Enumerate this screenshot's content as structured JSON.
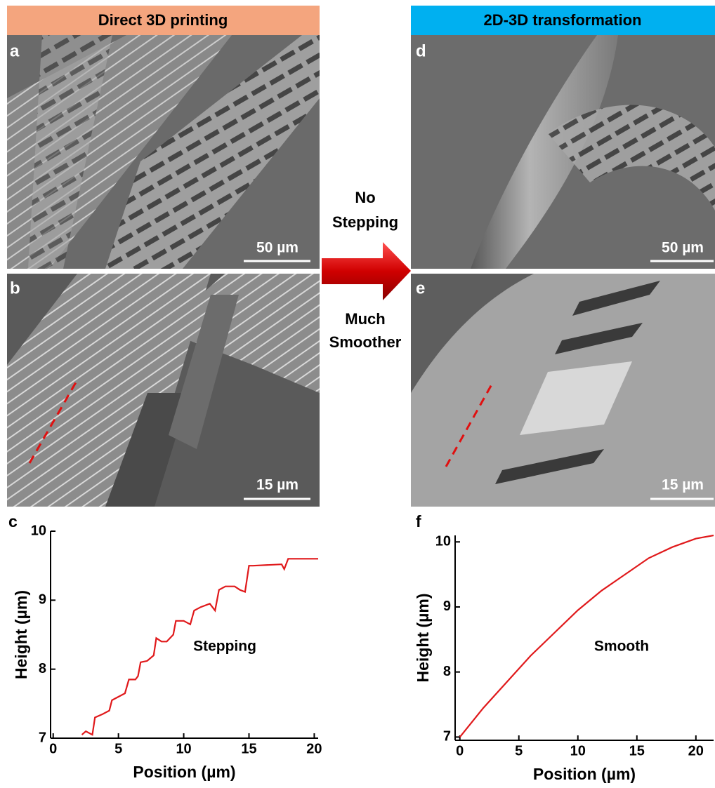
{
  "headers": [
    "Direct 3D printing",
    "2D-3D transformation"
  ],
  "images": [
    {
      "label": "a",
      "scale_bar": "50 µm"
    },
    {
      "label": "b",
      "scale_bar": "15 µm"
    },
    {
      "label": "d",
      "scale_bar": "50 µm"
    },
    {
      "label": "e",
      "scale_bar": "15 µm"
    }
  ],
  "arrow": {
    "top": [
      "No",
      "Stepping"
    ],
    "bottom": [
      "Much",
      "Smoother"
    ]
  },
  "chart_data": [
    {
      "type": "line",
      "label": "c",
      "x_label": "Position (µm)",
      "y_label": "Height (µm)",
      "annotation": "Stepping",
      "color": "#e0191b",
      "x": [
        2.2,
        2.5,
        3,
        3.2,
        3.8,
        4.3,
        4.5,
        5,
        5.5,
        5.8,
        6.3,
        6.5,
        6.7,
        7.2,
        7.7,
        7.9,
        8.3,
        8.7,
        9.2,
        9.4,
        10,
        10.5,
        10.8,
        11.3,
        12,
        12.4,
        12.7,
        13.2,
        13.9,
        14.3,
        14.7,
        15,
        15.3,
        17.5,
        17.7,
        18,
        20.3
      ],
      "values": [
        7.05,
        7.1,
        7.05,
        7.3,
        7.35,
        7.4,
        7.55,
        7.6,
        7.65,
        7.85,
        7.85,
        7.9,
        8.1,
        8.12,
        8.2,
        8.45,
        8.4,
        8.4,
        8.5,
        8.7,
        8.7,
        8.65,
        8.85,
        8.9,
        8.95,
        8.85,
        9.15,
        9.2,
        9.2,
        9.15,
        9.12,
        9.5,
        9.5,
        9.52,
        9.45,
        9.6,
        9.6
      ],
      "xlim": [
        -0.2,
        20.3
      ],
      "ylim": [
        7,
        10
      ],
      "xticks": [
        0,
        5,
        10,
        15,
        20
      ],
      "yticks": [
        7,
        8,
        9,
        10
      ]
    },
    {
      "type": "line",
      "label": "f",
      "x_label": "Position (µm)",
      "y_label": "Height (µm)",
      "annotation": "Smooth",
      "color": "#e0191b",
      "x": [
        0,
        2,
        4,
        6,
        8,
        10,
        12,
        14,
        16,
        18,
        20,
        21.5
      ],
      "values": [
        7.0,
        7.45,
        7.85,
        8.25,
        8.6,
        8.95,
        9.25,
        9.5,
        9.75,
        9.92,
        10.05,
        10.1
      ],
      "xlim": [
        -0.4,
        21.5
      ],
      "ylim": [
        6.95,
        10.1
      ],
      "xticks": [
        0,
        5,
        10,
        15,
        20
      ],
      "yticks": [
        7,
        8,
        9,
        10
      ]
    }
  ]
}
